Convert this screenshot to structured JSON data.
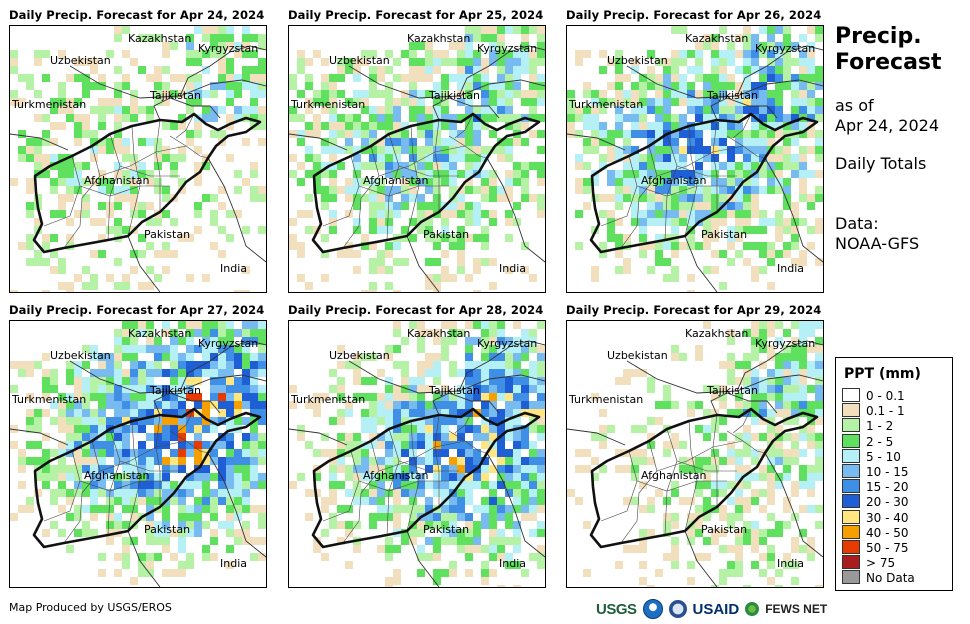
{
  "panels": [
    {
      "title": "Daily Precip. Forecast for Apr 24, 2024",
      "intensity": 0.25
    },
    {
      "title": "Daily Precip. Forecast for Apr 25, 2024",
      "intensity": 0.5
    },
    {
      "title": "Daily Precip. Forecast for Apr 26, 2024",
      "intensity": 0.7
    },
    {
      "title": "Daily Precip. Forecast for Apr 27, 2024",
      "intensity": 0.9
    },
    {
      "title": "Daily Precip. Forecast for Apr 28, 2024",
      "intensity": 0.8
    },
    {
      "title": "Daily Precip. Forecast for Apr 29, 2024",
      "intensity": 0.3
    }
  ],
  "map_labels": {
    "kazakhstan": "Kazakhstan",
    "kyrgyzstan": "Kyrgyzstan",
    "uzbekistan": "Uzbekistan",
    "tajikistan": "Tajikistan",
    "turkmenistan": "Turkmenistan",
    "afghanistan": "Afghanistan",
    "pakistan": "Pakistan",
    "india": "India"
  },
  "side": {
    "title_line1": "Precip.",
    "title_line2": "Forecast",
    "asof_line1": "as of",
    "asof_line2": "Apr 24, 2024",
    "totals": "Daily Totals",
    "data_line1": "Data:",
    "data_line2": "NOAA-GFS"
  },
  "legend": {
    "title": "PPT (mm)",
    "items": [
      {
        "label": "0 - 0.1",
        "color": "#ffffff"
      },
      {
        "label": "0.1 - 1",
        "color": "#f2dfbd"
      },
      {
        "label": "1 - 2",
        "color": "#b6f2a6"
      },
      {
        "label": "2 - 5",
        "color": "#5fe05f"
      },
      {
        "label": "5 - 10",
        "color": "#b4f0f6"
      },
      {
        "label": "10 - 15",
        "color": "#77bbf1"
      },
      {
        "label": "15 - 20",
        "color": "#3f8fe6"
      },
      {
        "label": "20 - 30",
        "color": "#1f5fd6"
      },
      {
        "label": "30 - 40",
        "color": "#ffe680"
      },
      {
        "label": "40 - 50",
        "color": "#f5a000"
      },
      {
        "label": "50 - 75",
        "color": "#e63a00"
      },
      {
        "label": "> 75",
        "color": "#a81e1e"
      },
      {
        "label": "No Data",
        "color": "#999999"
      }
    ]
  },
  "credit": "Map Produced by USGS/EROS",
  "logos": {
    "usgs": "USGS",
    "usaid": "USAID",
    "fews": "FEWS NET"
  }
}
